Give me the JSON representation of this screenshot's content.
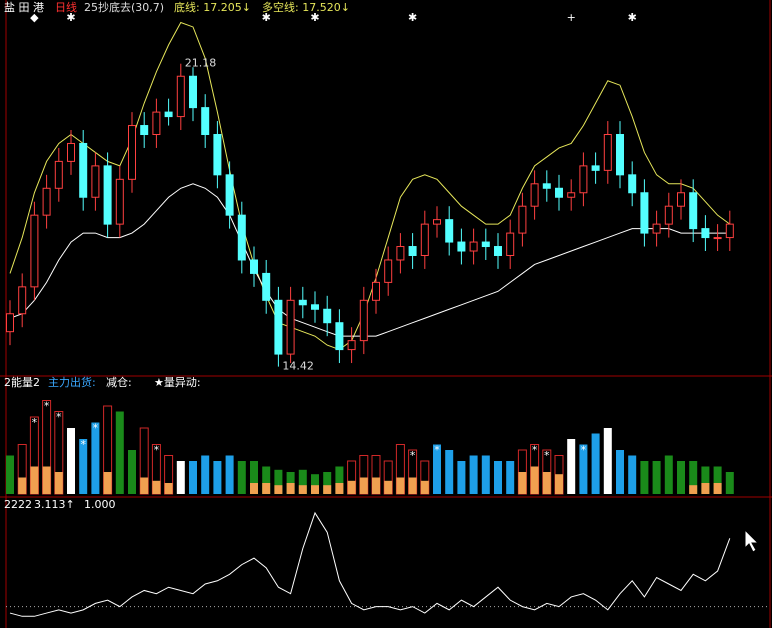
{
  "header": {
    "stock": "盐 田 港",
    "period": "日线",
    "indicator": "25抄底去(30,7)",
    "floor": "底线: 17.205↓",
    "trend": "多空线: 17.520↓"
  },
  "chart_data": [
    {
      "type": "candlestick",
      "ylim": [
        14.3,
        22.2
      ],
      "open": [
        15.2,
        15.6,
        16.2,
        17.8,
        18.4,
        19.0,
        19.4,
        18.2,
        18.9,
        17.6,
        18.6,
        19.8,
        19.6,
        20.1,
        20.0,
        20.9,
        20.2,
        19.6,
        18.7,
        17.8,
        16.8,
        16.5,
        15.9,
        14.7,
        15.9,
        15.8,
        15.7,
        15.4,
        14.8,
        15.0,
        15.9,
        16.3,
        16.8,
        17.1,
        16.9,
        17.6,
        17.7,
        17.2,
        17.0,
        17.2,
        17.1,
        16.9,
        17.4,
        18.0,
        18.5,
        18.4,
        18.2,
        18.3,
        18.9,
        18.8,
        19.6,
        18.7,
        18.3,
        17.4,
        17.6,
        18.0,
        18.3,
        17.5,
        17.3,
        17.3
      ],
      "close": [
        15.6,
        16.2,
        17.8,
        18.4,
        19.0,
        19.4,
        18.2,
        18.9,
        17.6,
        18.6,
        19.8,
        19.6,
        20.1,
        20.0,
        20.9,
        20.2,
        19.6,
        18.7,
        17.8,
        16.8,
        16.5,
        15.9,
        14.7,
        15.9,
        15.8,
        15.7,
        15.4,
        14.8,
        15.0,
        15.9,
        16.3,
        16.8,
        17.1,
        16.9,
        17.6,
        17.7,
        17.2,
        17.0,
        17.2,
        17.1,
        16.9,
        17.4,
        18.0,
        18.5,
        18.4,
        18.2,
        18.3,
        18.9,
        18.8,
        19.6,
        18.7,
        18.3,
        17.4,
        17.6,
        18.0,
        18.3,
        17.5,
        17.3,
        17.3,
        17.6
      ],
      "high": [
        15.9,
        16.5,
        18.1,
        18.7,
        19.3,
        19.7,
        19.7,
        19.2,
        19.2,
        18.9,
        20.1,
        20.1,
        20.4,
        20.4,
        21.18,
        21.1,
        20.5,
        19.9,
        19.0,
        18.1,
        17.1,
        16.8,
        16.2,
        16.2,
        16.2,
        16.1,
        16.0,
        15.7,
        15.3,
        16.2,
        16.6,
        17.1,
        17.4,
        17.4,
        17.9,
        18.0,
        18.0,
        17.5,
        17.5,
        17.5,
        17.4,
        17.7,
        18.3,
        18.8,
        18.8,
        18.7,
        18.6,
        19.2,
        19.2,
        19.9,
        19.9,
        19.0,
        18.6,
        17.9,
        18.3,
        18.6,
        18.6,
        17.8,
        17.6,
        17.9
      ],
      "low": [
        14.9,
        15.3,
        15.9,
        17.5,
        18.1,
        18.7,
        17.9,
        17.9,
        17.3,
        17.3,
        18.3,
        19.3,
        19.3,
        19.8,
        19.7,
        19.9,
        19.3,
        18.4,
        17.5,
        16.5,
        16.2,
        15.6,
        14.42,
        14.5,
        15.5,
        15.4,
        15.1,
        14.5,
        14.5,
        14.7,
        15.6,
        16.0,
        16.5,
        16.6,
        16.6,
        17.3,
        16.9,
        16.7,
        16.7,
        16.8,
        16.6,
        16.6,
        17.1,
        17.7,
        18.1,
        17.9,
        17.9,
        18.0,
        18.5,
        18.5,
        18.4,
        18.0,
        17.1,
        17.1,
        17.3,
        17.7,
        17.2,
        17.0,
        17.0,
        17.0
      ],
      "up_color": "#ff4040",
      "down_color": "#54ffff",
      "lines": [
        {
          "color": "#e6e65a",
          "values": [
            16.5,
            17.3,
            18.3,
            19.0,
            19.4,
            19.6,
            19.4,
            19.2,
            19.0,
            18.9,
            19.5,
            20.3,
            21.0,
            21.6,
            22.1,
            22.0,
            21.3,
            20.1,
            18.8,
            17.6,
            16.7,
            16.0,
            15.4,
            15.3,
            15.2,
            15.1,
            14.9,
            14.8,
            15.0,
            15.6,
            16.4,
            17.3,
            18.2,
            18.6,
            18.7,
            18.6,
            18.3,
            18.0,
            17.8,
            17.6,
            17.6,
            17.8,
            18.4,
            18.9,
            19.1,
            19.3,
            19.4,
            19.8,
            20.3,
            20.8,
            20.7,
            20.0,
            19.2,
            18.7,
            18.5,
            18.5,
            18.4,
            18.1,
            17.8,
            17.6
          ]
        },
        {
          "color": "#ffffff",
          "values": [
            15.5,
            15.6,
            15.9,
            16.3,
            16.8,
            17.2,
            17.4,
            17.4,
            17.3,
            17.3,
            17.4,
            17.6,
            17.9,
            18.2,
            18.4,
            18.5,
            18.4,
            18.2,
            17.8,
            17.2,
            16.6,
            16.1,
            15.7,
            15.5,
            15.4,
            15.3,
            15.2,
            15.1,
            15.1,
            15.1,
            15.1,
            15.2,
            15.3,
            15.4,
            15.5,
            15.6,
            15.7,
            15.8,
            15.9,
            16.0,
            16.1,
            16.3,
            16.5,
            16.7,
            16.8,
            16.9,
            17.0,
            17.1,
            17.2,
            17.3,
            17.4,
            17.5,
            17.5,
            17.5,
            17.5,
            17.4,
            17.4,
            17.4,
            17.4,
            17.4
          ]
        }
      ],
      "signals": [
        {
          "index": 2,
          "symbol": "◆"
        },
        {
          "index": 5,
          "symbol": "✱"
        },
        {
          "index": 21,
          "symbol": "✱"
        },
        {
          "index": 25,
          "symbol": "✱"
        },
        {
          "index": 33,
          "symbol": "✱"
        },
        {
          "index": 46,
          "symbol": "+"
        },
        {
          "index": 51,
          "symbol": "✱"
        }
      ],
      "peak_index": 14,
      "trough_index": 22
    },
    {
      "type": "bar",
      "title": "2能量2",
      "legend": [
        {
          "name": "主力出货:",
          "color": "#3aa8ff"
        },
        {
          "name": "减仓:",
          "color": "#ffffff"
        },
        {
          "name": "★量异动:",
          "color": "#ffffff"
        }
      ],
      "ylim": [
        0,
        100
      ],
      "values": [
        35,
        45,
        70,
        85,
        75,
        60,
        50,
        65,
        80,
        75,
        40,
        60,
        45,
        35,
        30,
        30,
        35,
        30,
        35,
        30,
        30,
        25,
        22,
        20,
        22,
        18,
        20,
        25,
        30,
        35,
        35,
        30,
        45,
        40,
        30,
        45,
        40,
        30,
        35,
        35,
        30,
        30,
        40,
        45,
        40,
        35,
        50,
        45,
        55,
        60,
        40,
        35,
        30,
        30,
        35,
        30,
        30,
        25,
        25,
        20
      ],
      "kinds": [
        "g",
        "r",
        "r",
        "r",
        "r",
        "w",
        "b",
        "b",
        "r",
        "g",
        "g",
        "r",
        "r",
        "r",
        "w",
        "b",
        "b",
        "b",
        "b",
        "g",
        "g",
        "g",
        "g",
        "g",
        "g",
        "g",
        "g",
        "g",
        "r",
        "r",
        "r",
        "r",
        "r",
        "r",
        "r",
        "b",
        "b",
        "b",
        "b",
        "b",
        "b",
        "b",
        "r",
        "r",
        "r",
        "r",
        "w",
        "b",
        "b",
        "w",
        "b",
        "b",
        "g",
        "g",
        "g",
        "g",
        "g",
        "g",
        "g",
        "g"
      ],
      "kind_colors": {
        "r": "#d02828",
        "b": "#1e9fe8",
        "g": "#1a8a1a",
        "w": "#ffffff"
      },
      "reduce": {
        "color": "#f0a050",
        "values": [
          0,
          15,
          25,
          25,
          20,
          0,
          0,
          0,
          20,
          0,
          0,
          15,
          12,
          10,
          0,
          0,
          0,
          0,
          0,
          0,
          10,
          10,
          8,
          10,
          8,
          8,
          8,
          10,
          12,
          15,
          15,
          12,
          15,
          15,
          12,
          0,
          0,
          0,
          0,
          0,
          0,
          0,
          20,
          25,
          20,
          18,
          0,
          0,
          0,
          0,
          0,
          0,
          0,
          0,
          0,
          0,
          8,
          10,
          10,
          0
        ]
      },
      "star_symbol": "*",
      "stars": [
        2,
        3,
        4,
        6,
        7,
        12,
        33,
        35,
        43,
        44,
        46,
        47,
        49
      ]
    },
    {
      "type": "line",
      "title": "2222",
      "last_label": "3.113↑",
      "ref": {
        "value": 1,
        "label": "1.000"
      },
      "ylim": [
        0.4,
        4.3
      ],
      "color": "#ffffff",
      "values": [
        0.8,
        0.7,
        0.7,
        0.8,
        0.9,
        0.8,
        0.9,
        1.1,
        1.2,
        1.0,
        1.3,
        1.5,
        1.4,
        1.6,
        1.5,
        1.4,
        1.7,
        1.8,
        2.0,
        2.3,
        2.5,
        2.2,
        1.6,
        1.4,
        2.8,
        3.9,
        3.3,
        1.8,
        1.1,
        0.9,
        1.0,
        1.0,
        0.9,
        1.0,
        0.8,
        1.1,
        0.9,
        1.2,
        1.0,
        1.3,
        1.6,
        1.2,
        1.0,
        0.9,
        1.1,
        1.0,
        1.3,
        1.4,
        1.2,
        0.9,
        1.4,
        1.8,
        1.3,
        1.9,
        1.7,
        1.5,
        2.0,
        1.8,
        2.1,
        3.113
      ]
    }
  ]
}
